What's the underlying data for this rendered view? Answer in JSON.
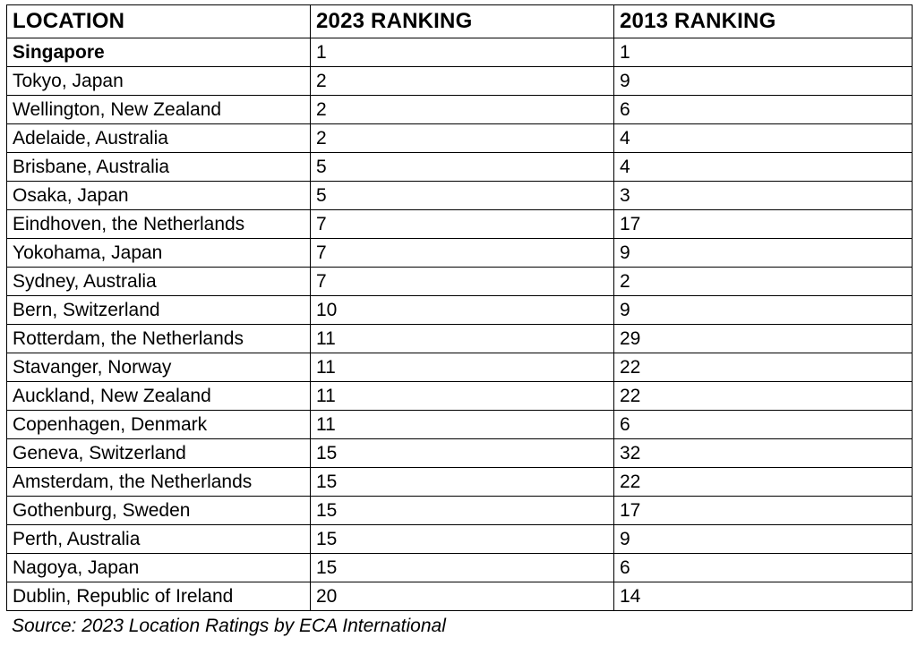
{
  "table": {
    "headers": [
      "LOCATION",
      "2023 RANKING",
      "2013 RANKING"
    ],
    "rows": [
      [
        "Singapore",
        "1",
        "1"
      ],
      [
        "Tokyo, Japan",
        "2",
        "9"
      ],
      [
        "Wellington, New Zealand",
        "2",
        "6"
      ],
      [
        "Adelaide, Australia",
        "2",
        "4"
      ],
      [
        "Brisbane, Australia",
        "5",
        "4"
      ],
      [
        "Osaka, Japan",
        "5",
        "3"
      ],
      [
        "Eindhoven, the Netherlands",
        "7",
        "17"
      ],
      [
        "Yokohama, Japan",
        "7",
        "9"
      ],
      [
        "Sydney, Australia",
        "7",
        "2"
      ],
      [
        "Bern, Switzerland",
        "10",
        "9"
      ],
      [
        "Rotterdam, the Netherlands",
        "11",
        "29"
      ],
      [
        "Stavanger, Norway",
        "11",
        "22"
      ],
      [
        "Auckland, New Zealand",
        "11",
        "22"
      ],
      [
        "Copenhagen, Denmark",
        "11",
        "6"
      ],
      [
        "Geneva, Switzerland",
        "15",
        "32"
      ],
      [
        "Amsterdam, the Netherlands",
        "15",
        "22"
      ],
      [
        "Gothenburg, Sweden",
        "15",
        "17"
      ],
      [
        "Perth, Australia",
        "15",
        "9"
      ],
      [
        "Nagoya, Japan",
        "15",
        "6"
      ],
      [
        "Dublin, Republic of Ireland",
        "20",
        "14"
      ]
    ]
  },
  "source": "Source: 2023 Location Ratings by ECA International",
  "colors": {
    "text": "#000000",
    "border": "#000000",
    "background": "#ffffff"
  }
}
